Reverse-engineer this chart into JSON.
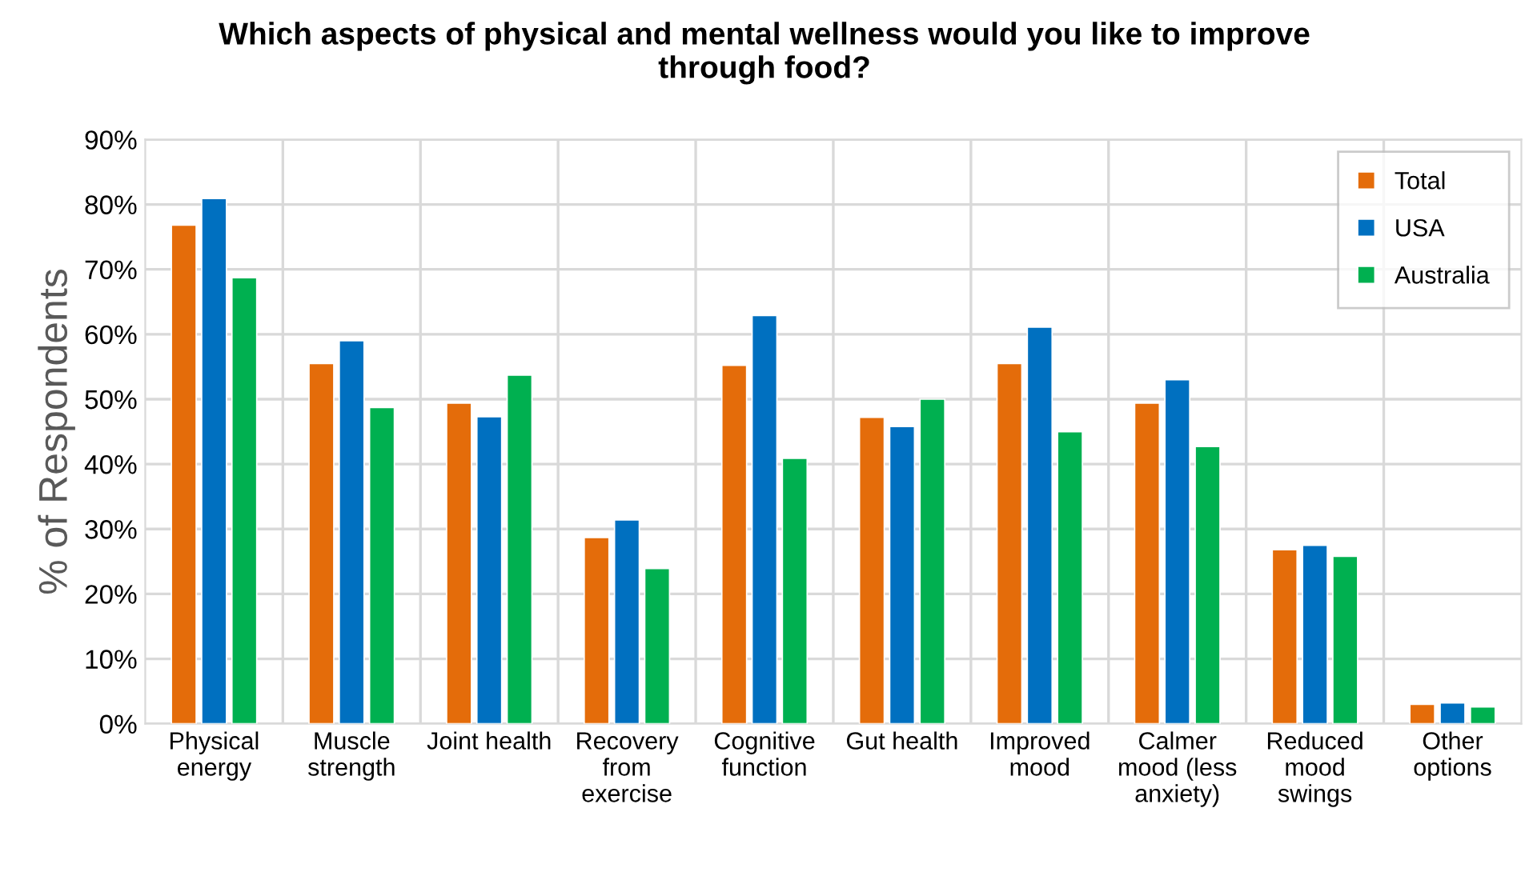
{
  "chart_data": {
    "type": "bar",
    "title": "Which aspects of physical and mental wellness would you like to improve through food?",
    "ylabel": "% of Respondents",
    "categories": [
      "Physical energy",
      "Muscle strength",
      "Joint health",
      "Recovery from exercise",
      "Cognitive function",
      "Gut health",
      "Improved mood",
      "Calmer mood (less anxiety)",
      "Reduced mood swings",
      "Other options"
    ],
    "series": [
      {
        "name": "Total",
        "color": "#e46c0a",
        "values": [
          76.8,
          55.5,
          49.4,
          28.7,
          55.2,
          47.2,
          55.5,
          49.4,
          26.8,
          3.0
        ]
      },
      {
        "name": "USA",
        "color": "#0070c0",
        "values": [
          80.9,
          59.0,
          47.3,
          31.4,
          62.9,
          45.8,
          61.1,
          53.0,
          27.5,
          3.2
        ]
      },
      {
        "name": "Australia",
        "color": "#00b050",
        "values": [
          68.7,
          48.7,
          53.7,
          23.9,
          40.9,
          50.0,
          45.0,
          42.7,
          25.8,
          2.6
        ]
      }
    ],
    "ylim": [
      0,
      90
    ],
    "yticks": [
      {
        "value": 0,
        "label": "0%"
      },
      {
        "value": 10,
        "label": "10%"
      },
      {
        "value": 20,
        "label": "20%"
      },
      {
        "value": 30,
        "label": "30%"
      },
      {
        "value": 40,
        "label": "40%"
      },
      {
        "value": 50,
        "label": "50%"
      },
      {
        "value": 60,
        "label": "60%"
      },
      {
        "value": 70,
        "label": "70%"
      },
      {
        "value": 80,
        "label": "80%"
      },
      {
        "value": 90,
        "label": "90%"
      }
    ],
    "grid": true,
    "legend": "top right"
  }
}
